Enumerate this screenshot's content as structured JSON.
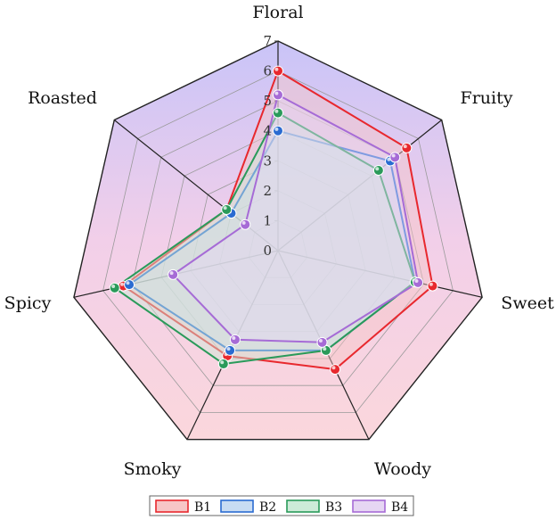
{
  "chart_data": {
    "type": "radar",
    "axes": [
      "Floral",
      "Fruity",
      "Sweet",
      "Woody",
      "Smoky",
      "Spicy",
      "Roasted"
    ],
    "range": [
      0,
      7
    ],
    "ticks": [
      "0",
      "1",
      "2",
      "3",
      "4",
      "5",
      "6",
      "7"
    ],
    "grid": true,
    "legend_position": "bottom",
    "series": [
      {
        "name": "B1",
        "color": "#e8282e",
        "fill": "#f7c6c6",
        "values": [
          6.0,
          5.5,
          5.3,
          4.4,
          3.9,
          5.3,
          2.2
        ]
      },
      {
        "name": "B2",
        "color": "#2a6bd1",
        "fill": "#c8dcf3",
        "values": [
          4.0,
          4.8,
          4.7,
          3.7,
          3.7,
          5.1,
          2.0
        ]
      },
      {
        "name": "B3",
        "color": "#2a9a5a",
        "fill": "#cdebd8",
        "values": [
          4.6,
          4.3,
          4.7,
          3.7,
          4.2,
          5.6,
          2.2
        ]
      },
      {
        "name": "B4",
        "color": "#a66bd6",
        "fill": "#e6d6f3",
        "values": [
          5.2,
          5.0,
          4.8,
          3.4,
          3.3,
          3.6,
          1.4
        ]
      }
    ]
  }
}
